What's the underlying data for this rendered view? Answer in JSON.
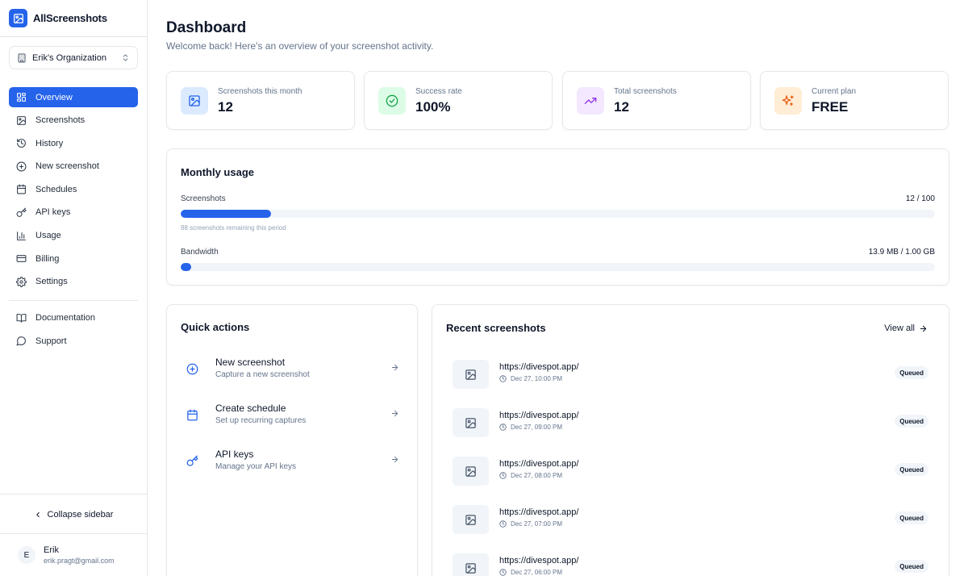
{
  "brand": {
    "name": "AllScreenshots"
  },
  "org": {
    "name": "Erik's Organization"
  },
  "nav": {
    "items": [
      {
        "label": "Overview",
        "icon": "grid-icon",
        "active": true
      },
      {
        "label": "Screenshots",
        "icon": "image-icon"
      },
      {
        "label": "History",
        "icon": "history-icon"
      },
      {
        "label": "New screenshot",
        "icon": "plus-circle-icon"
      },
      {
        "label": "Schedules",
        "icon": "calendar-icon"
      },
      {
        "label": "API keys",
        "icon": "key-icon"
      },
      {
        "label": "Usage",
        "icon": "bar-chart-icon"
      },
      {
        "label": "Billing",
        "icon": "credit-card-icon"
      },
      {
        "label": "Settings",
        "icon": "gear-icon"
      }
    ],
    "secondary": [
      {
        "label": "Documentation",
        "icon": "book-icon"
      },
      {
        "label": "Support",
        "icon": "message-circle-icon"
      }
    ],
    "collapse_label": "Collapse sidebar"
  },
  "user": {
    "initial": "E",
    "name": "Erik",
    "email": "erik.pragt@gmail.com"
  },
  "header": {
    "title": "Dashboard",
    "subtitle": "Welcome back! Here's an overview of your screenshot activity."
  },
  "stats": [
    {
      "label": "Screenshots this month",
      "value": "12",
      "icon": "image-icon",
      "color": "#2563eb",
      "bg": "#dbeafe"
    },
    {
      "label": "Success rate",
      "value": "100%",
      "icon": "check-circle-icon",
      "color": "#16a34a",
      "bg": "#dcfce7"
    },
    {
      "label": "Total screenshots",
      "value": "12",
      "icon": "trending-up-icon",
      "color": "#9333ea",
      "bg": "#f3e8ff"
    },
    {
      "label": "Current plan",
      "value": "FREE",
      "icon": "sparkles-icon",
      "color": "#ea580c",
      "bg": "#ffedd5"
    }
  ],
  "usage": {
    "title": "Monthly usage",
    "screenshots": {
      "label": "Screenshots",
      "value": "12 / 100",
      "fraction": 0.12,
      "note": "88 screenshots remaining this period"
    },
    "bandwidth": {
      "label": "Bandwidth",
      "value": "13.9 MB / 1.00 GB",
      "fraction": 0.0139
    }
  },
  "quick_actions": {
    "title": "Quick actions",
    "items": [
      {
        "title": "New screenshot",
        "desc": "Capture a new screenshot",
        "icon": "plus-circle-icon"
      },
      {
        "title": "Create schedule",
        "desc": "Set up recurring captures",
        "icon": "calendar-icon"
      },
      {
        "title": "API keys",
        "desc": "Manage your API keys",
        "icon": "key-icon"
      }
    ]
  },
  "recent": {
    "title": "Recent screenshots",
    "view_all": "View all",
    "items": [
      {
        "url": "https://divespot.app/",
        "time": "Dec 27, 10:00 PM",
        "status": "Queued"
      },
      {
        "url": "https://divespot.app/",
        "time": "Dec 27, 09:00 PM",
        "status": "Queued"
      },
      {
        "url": "https://divespot.app/",
        "time": "Dec 27, 08:00 PM",
        "status": "Queued"
      },
      {
        "url": "https://divespot.app/",
        "time": "Dec 27, 07:00 PM",
        "status": "Queued"
      },
      {
        "url": "https://divespot.app/",
        "time": "Dec 27, 06:00 PM",
        "status": "Queued"
      }
    ]
  }
}
